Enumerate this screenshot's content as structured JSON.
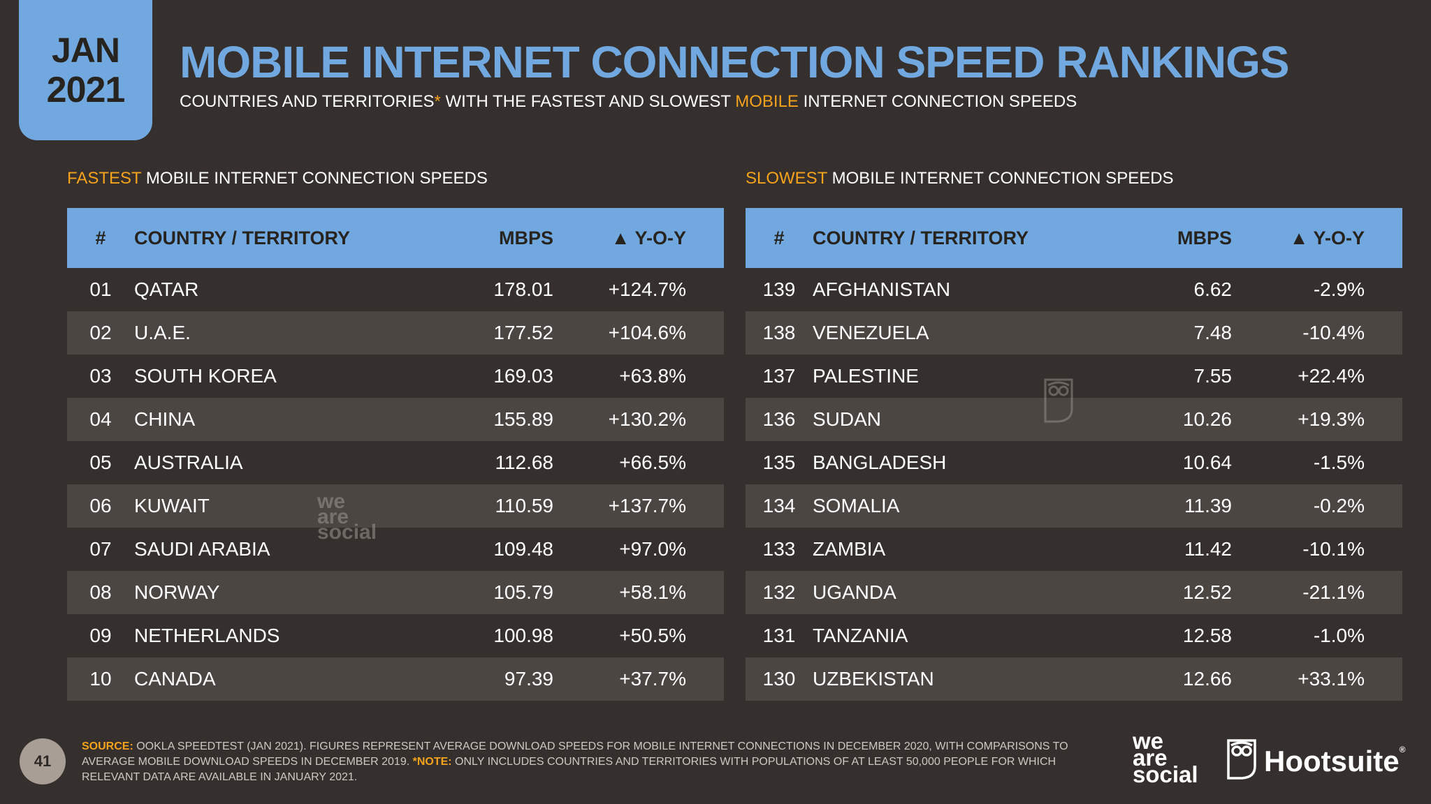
{
  "header": {
    "date_month": "JAN",
    "date_year": "2021",
    "title": "MOBILE INTERNET CONNECTION SPEED RANKINGS",
    "subtitle_part1": "COUNTRIES AND TERRITORIES",
    "subtitle_asterisk": "*",
    "subtitle_part2": " WITH THE FASTEST AND SLOWEST ",
    "subtitle_highlight": "MOBILE",
    "subtitle_part3": " INTERNET CONNECTION SPEEDS"
  },
  "columns": {
    "num": "#",
    "country": "COUNTRY / TERRITORY",
    "mbps": "MBPS",
    "yoy": "▲ Y-O-Y"
  },
  "fastest": {
    "caption_highlight": "FASTEST",
    "caption_rest": " MOBILE INTERNET CONNECTION SPEEDS",
    "rows": [
      {
        "rank": "01",
        "country": "QATAR",
        "mbps": "178.01",
        "yoy": "+124.7%"
      },
      {
        "rank": "02",
        "country": "U.A.E.",
        "mbps": "177.52",
        "yoy": "+104.6%"
      },
      {
        "rank": "03",
        "country": "SOUTH KOREA",
        "mbps": "169.03",
        "yoy": "+63.8%"
      },
      {
        "rank": "04",
        "country": "CHINA",
        "mbps": "155.89",
        "yoy": "+130.2%"
      },
      {
        "rank": "05",
        "country": "AUSTRALIA",
        "mbps": "112.68",
        "yoy": "+66.5%"
      },
      {
        "rank": "06",
        "country": "KUWAIT",
        "mbps": "110.59",
        "yoy": "+137.7%"
      },
      {
        "rank": "07",
        "country": "SAUDI ARABIA",
        "mbps": "109.48",
        "yoy": "+97.0%"
      },
      {
        "rank": "08",
        "country": "NORWAY",
        "mbps": "105.79",
        "yoy": "+58.1%"
      },
      {
        "rank": "09",
        "country": "NETHERLANDS",
        "mbps": "100.98",
        "yoy": "+50.5%"
      },
      {
        "rank": "10",
        "country": "CANADA",
        "mbps": "97.39",
        "yoy": "+37.7%"
      }
    ]
  },
  "slowest": {
    "caption_highlight": "SLOWEST",
    "caption_rest": " MOBILE INTERNET CONNECTION SPEEDS",
    "rows": [
      {
        "rank": "139",
        "country": "AFGHANISTAN",
        "mbps": "6.62",
        "yoy": "-2.9%"
      },
      {
        "rank": "138",
        "country": "VENEZUELA",
        "mbps": "7.48",
        "yoy": "-10.4%"
      },
      {
        "rank": "137",
        "country": "PALESTINE",
        "mbps": "7.55",
        "yoy": "+22.4%"
      },
      {
        "rank": "136",
        "country": "SUDAN",
        "mbps": "10.26",
        "yoy": "+19.3%"
      },
      {
        "rank": "135",
        "country": "BANGLADESH",
        "mbps": "10.64",
        "yoy": "-1.5%"
      },
      {
        "rank": "134",
        "country": "SOMALIA",
        "mbps": "11.39",
        "yoy": "-0.2%"
      },
      {
        "rank": "133",
        "country": "ZAMBIA",
        "mbps": "11.42",
        "yoy": "-10.1%"
      },
      {
        "rank": "132",
        "country": "UGANDA",
        "mbps": "12.52",
        "yoy": "-21.1%"
      },
      {
        "rank": "131",
        "country": "TANZANIA",
        "mbps": "12.58",
        "yoy": "-1.0%"
      },
      {
        "rank": "130",
        "country": "UZBEKISTAN",
        "mbps": "12.66",
        "yoy": "+33.1%"
      }
    ]
  },
  "footer": {
    "page_number": "41",
    "source_label": "SOURCE:",
    "source_text": " OOKLA SPEEDTEST (JAN 2021). FIGURES REPRESENT AVERAGE DOWNLOAD SPEEDS FOR MOBILE INTERNET CONNECTIONS IN DECEMBER 2020, WITH COMPARISONS TO AVERAGE MOBILE DOWNLOAD SPEEDS IN DECEMBER 2019. ",
    "note_label": "*NOTE:",
    "note_text": " ONLY INCLUDES COUNTRIES AND TERRITORIES WITH POPULATIONS OF AT LEAST 50,000 PEOPLE FOR WHICH RELEVANT DATA ARE AVAILABLE IN JANUARY 2021.",
    "brand_was_line1": "we",
    "brand_was_line2": "are",
    "brand_was_line3": "social",
    "brand_hootsuite": "Hootsuite",
    "brand_reg": "®"
  },
  "watermark": {
    "line1": "we",
    "line2": "are",
    "line3": "social"
  },
  "colors": {
    "background": "#35302d",
    "accent_blue": "#71a8e0",
    "accent_orange": "#f5a21c",
    "row_stripe": "#4c4643"
  },
  "icons": {
    "watermark_owl": "owl-icon",
    "brand_owl": "owl-logo-icon"
  }
}
